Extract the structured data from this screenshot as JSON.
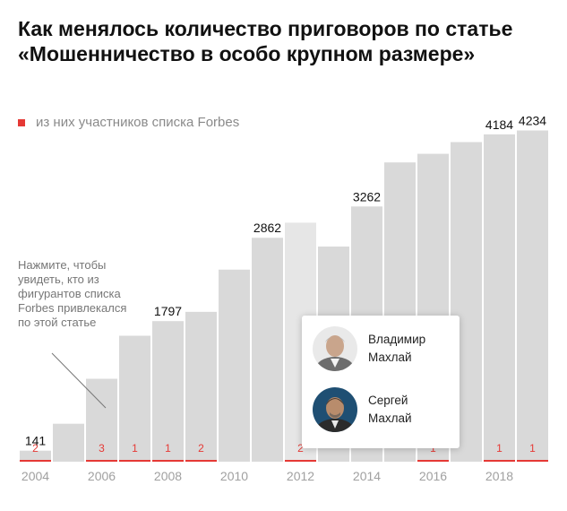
{
  "title": {
    "line1": "Как менялось количество приговоров по статье",
    "line2": "«Мошенничество в особо крупном размере»"
  },
  "legend": {
    "label": "из них участников списка Forbes",
    "color": "#e53935"
  },
  "annotation": {
    "lines": [
      "Нажмите, чтобы",
      "увидеть, кто из",
      "фигурантов списка",
      "Forbes привлекался",
      "по этой статье"
    ]
  },
  "popup": {
    "people": [
      {
        "first": "Владимир",
        "last": "Махлай"
      },
      {
        "first": "Сергей",
        "last": "Махлай"
      }
    ]
  },
  "chart_data": {
    "type": "bar",
    "categories": [
      2004,
      2005,
      2006,
      2007,
      2008,
      2009,
      2010,
      2011,
      2012,
      2013,
      2014,
      2015,
      2016,
      2017,
      2018,
      2019
    ],
    "series": [
      {
        "values": [
          141,
          485,
          1060,
          1610,
          1797,
          1915,
          2455,
          2862,
          3055,
          2750,
          3262,
          3825,
          3935,
          4085,
          4184,
          4234
        ]
      },
      {
        "name": "из них участников списка Forbes",
        "values": [
          2,
          null,
          3,
          1,
          1,
          2,
          null,
          null,
          2,
          null,
          null,
          null,
          1,
          null,
          1,
          1
        ]
      }
    ],
    "value_labels": {
      "2004": "141",
      "2008": "1797",
      "2011": "2862",
      "2014": "3262",
      "2018": "4184",
      "2019": "4234"
    },
    "x_tick_labels": [
      "2004",
      "2006",
      "2008",
      "2010",
      "2012",
      "2014",
      "2016",
      "2018"
    ],
    "ylim": [
      0,
      4400
    ],
    "highlighted_category": 2012,
    "grid": false,
    "colors": {
      "bar": "#d9d9d9",
      "bar_highlight": "#e6e6e6",
      "forbes": "#e53935",
      "ticks": "#a0a0a0"
    }
  }
}
